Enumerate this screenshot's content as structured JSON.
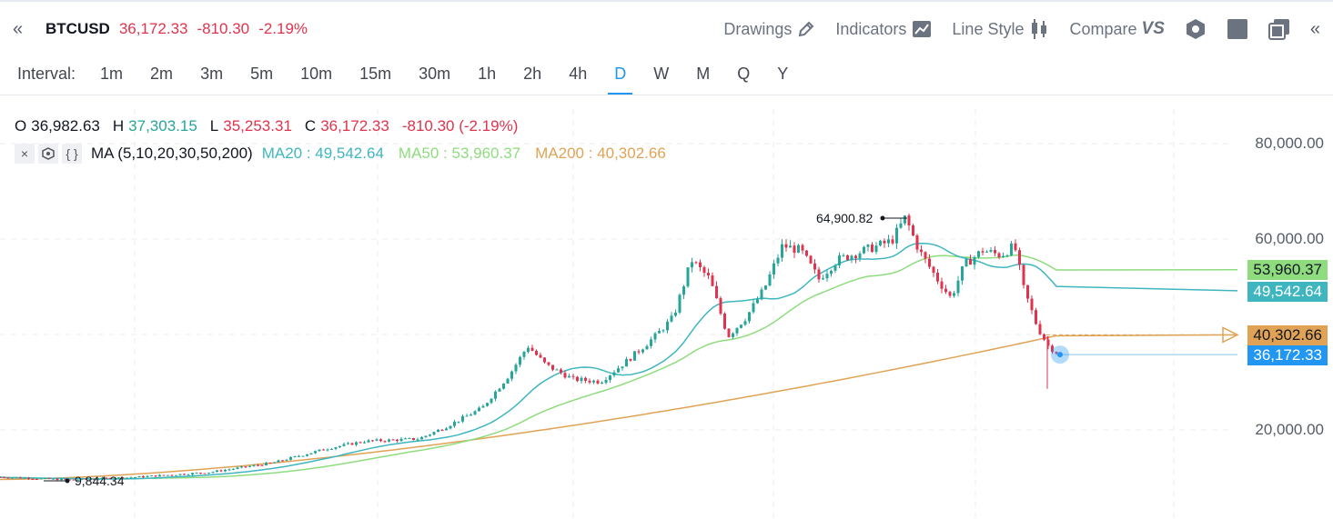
{
  "header": {
    "collapse_left": "«",
    "symbol": "BTCUSD",
    "price": "36,172.33",
    "change": "-810.30",
    "change_pct": "-2.19%"
  },
  "toolbar": {
    "drawings": "Drawings",
    "indicators": "Indicators",
    "line_style": "Line Style",
    "compare": "Compare",
    "compare_badge": "VS",
    "collapse_right": "«"
  },
  "intervals": {
    "label": "Interval:",
    "items": [
      "1m",
      "2m",
      "3m",
      "5m",
      "10m",
      "15m",
      "30m",
      "1h",
      "2h",
      "4h",
      "D",
      "W",
      "M",
      "Q",
      "Y"
    ],
    "active": "D"
  },
  "ohlc": {
    "o_label": "O",
    "o": "36,982.63",
    "h_label": "H",
    "h": "37,303.15",
    "l_label": "L",
    "l": "35,253.31",
    "c_label": "C",
    "c": "36,172.33",
    "change": "-810.30 (-2.19%)"
  },
  "indicator": {
    "close_icon": "×",
    "settings_icon": "gear-icon",
    "code_icon": "{ }",
    "name": "MA (5,10,20,30,50,200)",
    "ma20": "MA20 : 49,542.64",
    "ma50": "MA50 : 53,960.37",
    "ma200": "MA200 : 40,302.66"
  },
  "axis": {
    "ticks": [
      "80,000.00",
      "60,000.00",
      "20,000.00"
    ]
  },
  "tags": {
    "ma50": "53,960.37",
    "ma20": "49,542.64",
    "ma200": "40,302.66",
    "last": "36,172.33"
  },
  "annotations": {
    "high": "64,900.82",
    "low": "9,844.34"
  },
  "colors": {
    "up": "#26a69a",
    "down": "#e0334d",
    "accent": "#2196f3",
    "ma20": "#3fb6bf",
    "ma50": "#8fdc7e",
    "ma200": "#e0a355"
  }
}
